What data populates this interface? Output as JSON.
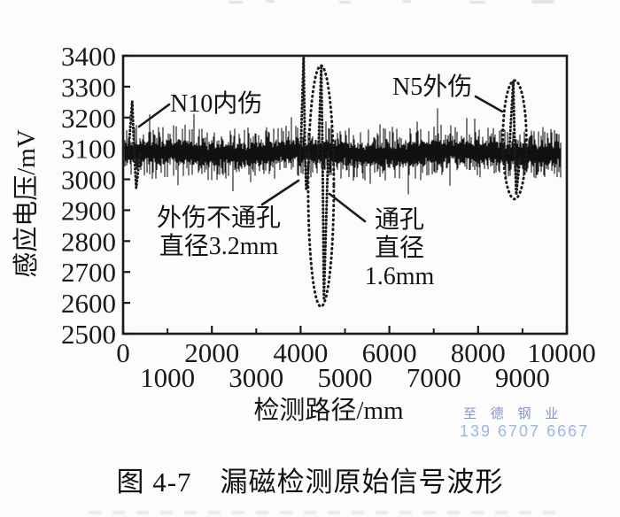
{
  "figure": {
    "caption": "图 4-7　漏磁检测原始信号波形"
  },
  "watermark": {
    "brand": "至 德 钢 业",
    "phone": "139 6707 6667",
    "brand_color": "#8095cb",
    "phone_color": "#9cb6e5"
  },
  "chart_data": {
    "type": "line",
    "title": "",
    "xlabel": "检测路径/mm",
    "ylabel": "感应电压/mV",
    "xlim": [
      0,
      10000
    ],
    "ylim": [
      2500,
      3400
    ],
    "x_major_ticks": [
      0,
      2000,
      4000,
      6000,
      8000,
      10000
    ],
    "x_minor_ticks": [
      1000,
      3000,
      5000,
      7000,
      9000
    ],
    "y_ticks": [
      2500,
      2600,
      2700,
      2800,
      2900,
      3000,
      3100,
      3200,
      3300,
      3400
    ],
    "x_labels_staggered": true,
    "grid": false,
    "frame": true,
    "legend": null,
    "series_color": "#1a1a1a",
    "baseline_mV": 3085,
    "noise_peak_to_peak_mV": 150,
    "noise_seed": 13,
    "defect_signals": [
      {
        "label": "N10内伤",
        "x_mm": 230,
        "peak_mV": 3252,
        "trough_mV": 2972,
        "points": [
          [
            118,
            3085
          ],
          [
            205,
            3252
          ],
          [
            252,
            3085
          ],
          [
            295,
            2972
          ],
          [
            385,
            3085
          ]
        ]
      },
      {
        "label": "外伤不通孔 直径3.2mm",
        "x_mm": 4070,
        "peak_mV": 3395,
        "trough_mV": 2965,
        "points": [
          [
            4000,
            3085
          ],
          [
            4068,
            3395
          ],
          [
            4100,
            3085
          ],
          [
            4128,
            2965
          ],
          [
            4200,
            3085
          ]
        ]
      },
      {
        "label": "通孔 直径1.6mm",
        "x_mm": 4480,
        "peak_mV": 3362,
        "trough_mV": 2615,
        "points": [
          [
            4400,
            3085
          ],
          [
            4465,
            3362
          ],
          [
            4495,
            3085
          ],
          [
            4525,
            2615
          ],
          [
            4620,
            3085
          ]
        ]
      },
      {
        "label": "N5外伤",
        "x_mm": 8820,
        "peak_mV": 3316,
        "trough_mV": 2950,
        "points": [
          [
            8698,
            3085
          ],
          [
            8792,
            3316
          ],
          [
            8828,
            3085
          ],
          [
            8860,
            2950
          ],
          [
            8955,
            3085
          ]
        ]
      }
    ],
    "ellipse_markers": [
      {
        "around": "通孔 直径1.6mm",
        "x_mm": 4460,
        "center_mV": 2978,
        "rx_mm": 290,
        "ry_mV": 390
      },
      {
        "around": "N5外伤",
        "x_mm": 8822,
        "center_mV": 3128,
        "rx_mm": 265,
        "ry_mV": 192
      }
    ]
  },
  "annotations": {
    "n10": "N10内伤",
    "n5": "N5外伤",
    "blind_hole_line1": "外伤不通孔",
    "blind_hole_line2": "直径3.2mm",
    "through_hole_line1": "通孔",
    "through_hole_line2": "直径1.6mm"
  }
}
